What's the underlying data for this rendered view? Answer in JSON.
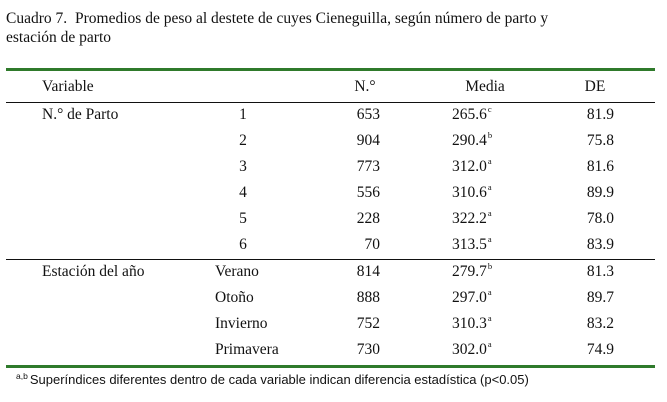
{
  "caption": {
    "number": "Cuadro 7.",
    "line1": "Promedios de peso al destete de cuyes Cieneguilla, según número de parto y",
    "line2": "estación de parto"
  },
  "headers": {
    "variable": "Variable",
    "n": "N.°",
    "media": "Media",
    "de": "DE"
  },
  "groups": [
    {
      "label": "N.° de Parto",
      "rows": [
        {
          "level": "1",
          "n": "653",
          "media": "265.6",
          "sup": "c",
          "de": "81.9"
        },
        {
          "level": "2",
          "n": "904",
          "media": "290.4",
          "sup": "b",
          "de": "75.8"
        },
        {
          "level": "3",
          "n": "773",
          "media": "312.0",
          "sup": "a",
          "de": "81.6"
        },
        {
          "level": "4",
          "n": "556",
          "media": "310.6",
          "sup": "a",
          "de": "89.9"
        },
        {
          "level": "5",
          "n": "228",
          "media": "322.2",
          "sup": "a",
          "de": "78.0"
        },
        {
          "level": "6",
          "n": "70",
          "media": "313.5",
          "sup": "a",
          "de": "83.9"
        }
      ]
    },
    {
      "label": "Estación del año",
      "rows": [
        {
          "level": "Verano",
          "n": "814",
          "media": "279.7",
          "sup": "b",
          "de": "81.3"
        },
        {
          "level": "Otoño",
          "n": "888",
          "media": "297.0",
          "sup": "a",
          "de": "89.7"
        },
        {
          "level": "Invierno",
          "n": "752",
          "media": "310.3",
          "sup": "a",
          "de": "83.2"
        },
        {
          "level": "Primavera",
          "n": "730",
          "media": "302.0",
          "sup": "a",
          "de": "74.9"
        }
      ]
    }
  ],
  "footnote": {
    "marker": "a,b",
    "text": "Superíndices diferentes dentro de cada variable indican diferencia estadística (p<0.05)"
  }
}
